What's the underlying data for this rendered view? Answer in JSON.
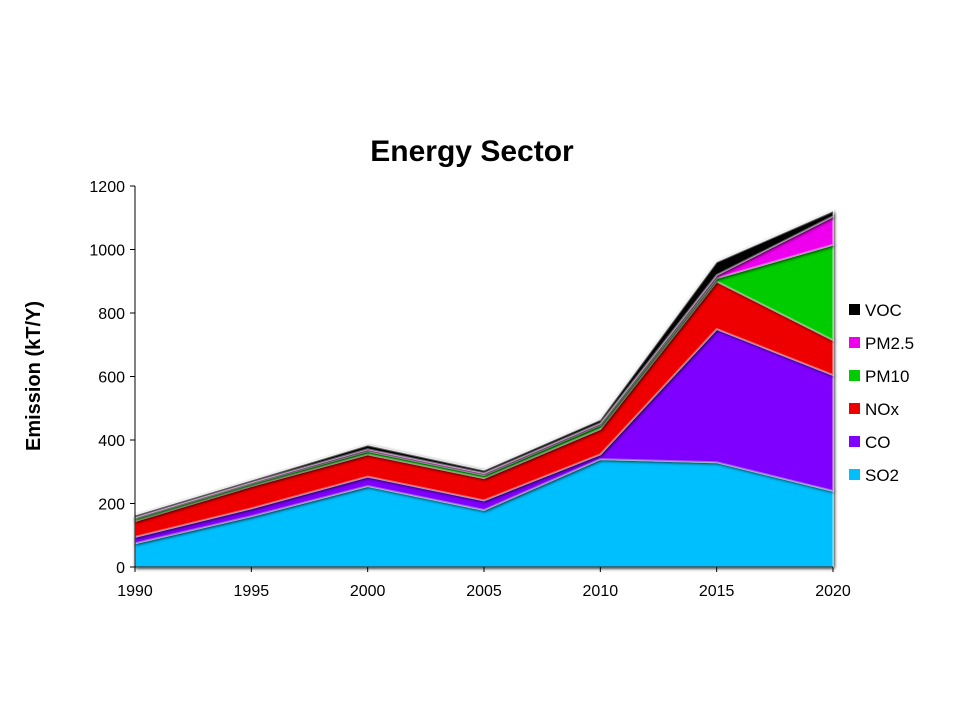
{
  "chart_data": {
    "type": "area",
    "stacked": true,
    "title": "Energy Sector",
    "xlabel": "",
    "ylabel": "Emission (kT/Y)",
    "x": [
      1990,
      1995,
      2000,
      2005,
      2010,
      2015,
      2020
    ],
    "ylim": [
      0,
      1200
    ],
    "yticks": [
      0,
      200,
      400,
      600,
      800,
      1000,
      1200
    ],
    "grid": false,
    "legend_position": "right",
    "series": [
      {
        "name": "SO2",
        "color": "#00BFFF",
        "values": [
          75,
          160,
          255,
          180,
          340,
          330,
          240
        ]
      },
      {
        "name": "CO",
        "color": "#7F00FF",
        "values": [
          20,
          25,
          30,
          30,
          15,
          420,
          365
        ]
      },
      {
        "name": "NOx",
        "color": "#EE0000",
        "values": [
          50,
          70,
          70,
          70,
          80,
          150,
          110
        ]
      },
      {
        "name": "PM10",
        "color": "#00CC00",
        "values": [
          8,
          8,
          10,
          10,
          12,
          10,
          300
        ]
      },
      {
        "name": "PM2.5",
        "color": "#EE00EE",
        "values": [
          4,
          4,
          6,
          6,
          6,
          10,
          90
        ]
      },
      {
        "name": "VOC",
        "color": "#000000",
        "values": [
          5,
          5,
          12,
          8,
          10,
          40,
          15
        ]
      }
    ]
  }
}
